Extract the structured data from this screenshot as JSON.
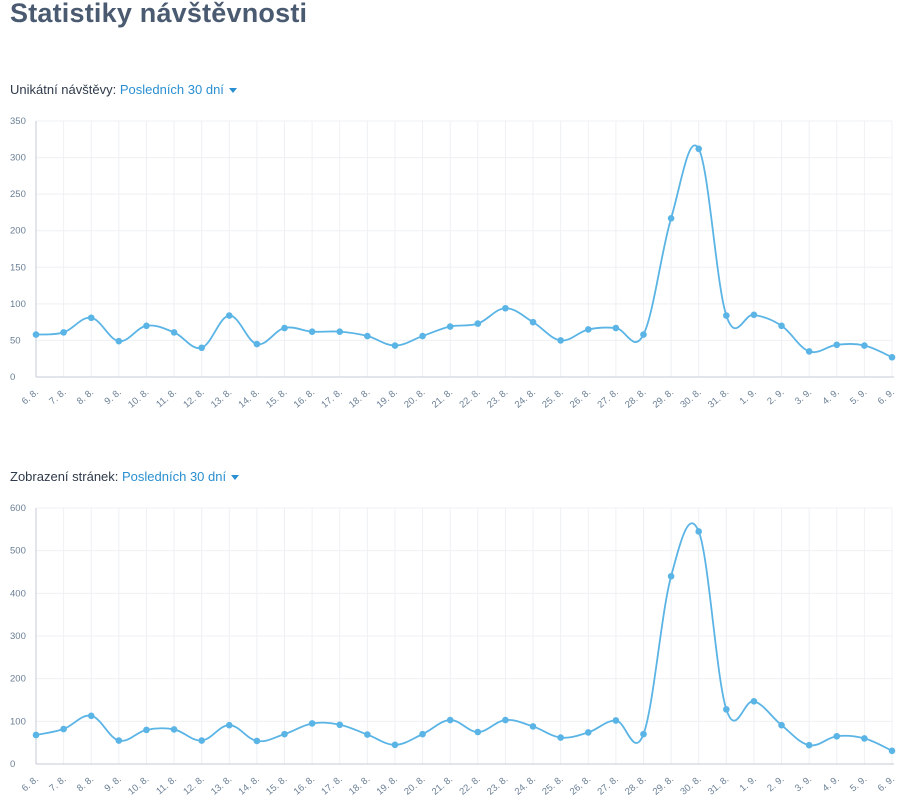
{
  "page": {
    "title": "Statistiky návštěvnosti"
  },
  "sections": [
    {
      "label": "Unikátní návštěvy:",
      "period": "Posledních 30 dní"
    },
    {
      "label": "Zobrazení stránek:",
      "period": "Posledních 30 dní"
    }
  ],
  "colors": {
    "line": "#5ab4e5",
    "grid": "#eef0f3",
    "axis": "#c6ccd4",
    "link": "#2a8fd0"
  },
  "chart_data": [
    {
      "type": "line",
      "title": "",
      "xlabel": "",
      "ylabel": "",
      "grid": true,
      "x": [
        "6. 8.",
        "7. 8.",
        "8. 8.",
        "9. 8.",
        "10. 8.",
        "11. 8.",
        "12. 8.",
        "13. 8.",
        "14. 8.",
        "15. 8.",
        "16. 8.",
        "17. 8.",
        "18. 8.",
        "19. 8.",
        "20. 8.",
        "21. 8.",
        "22. 8.",
        "23. 8.",
        "24. 8.",
        "25. 8.",
        "26. 8.",
        "27. 8.",
        "28. 8.",
        "29. 8.",
        "30. 8.",
        "31. 8.",
        "1. 9.",
        "2. 9.",
        "3. 9.",
        "4. 9.",
        "5. 9.",
        "6. 9."
      ],
      "yticks": [
        0,
        50,
        100,
        150,
        200,
        250,
        300,
        350
      ],
      "ylim": [
        0,
        350
      ],
      "series": [
        {
          "values": [
            58,
            61,
            81,
            49,
            70,
            61,
            40,
            84,
            45,
            67,
            62,
            62,
            56,
            43,
            56,
            69,
            73,
            94,
            75,
            50,
            65,
            67,
            58,
            217,
            312,
            84,
            85,
            70,
            35,
            44,
            43,
            27
          ]
        }
      ]
    },
    {
      "type": "line",
      "title": "",
      "xlabel": "",
      "ylabel": "",
      "grid": true,
      "x": [
        "6. 8.",
        "7. 8.",
        "8. 8.",
        "9. 8.",
        "10. 8.",
        "11. 8.",
        "12. 8.",
        "13. 8.",
        "14. 8.",
        "15. 8.",
        "16. 8.",
        "17. 8.",
        "18. 8.",
        "19. 8.",
        "20. 8.",
        "21. 8.",
        "22. 8.",
        "23. 8.",
        "24. 8.",
        "25. 8.",
        "26. 8.",
        "27. 8.",
        "28. 8.",
        "29. 8.",
        "30. 8.",
        "31. 8.",
        "1. 9.",
        "2. 9.",
        "3. 9.",
        "4. 9.",
        "5. 9.",
        "6. 9."
      ],
      "yticks": [
        0,
        100,
        200,
        300,
        400,
        500,
        600
      ],
      "ylim": [
        0,
        600
      ],
      "series": [
        {
          "values": [
            68,
            82,
            113,
            55,
            80,
            81,
            55,
            91,
            54,
            70,
            95,
            92,
            69,
            45,
            70,
            103,
            75,
            103,
            88,
            62,
            74,
            102,
            70,
            440,
            545,
            128,
            147,
            91,
            44,
            65,
            60,
            31
          ]
        }
      ]
    }
  ]
}
